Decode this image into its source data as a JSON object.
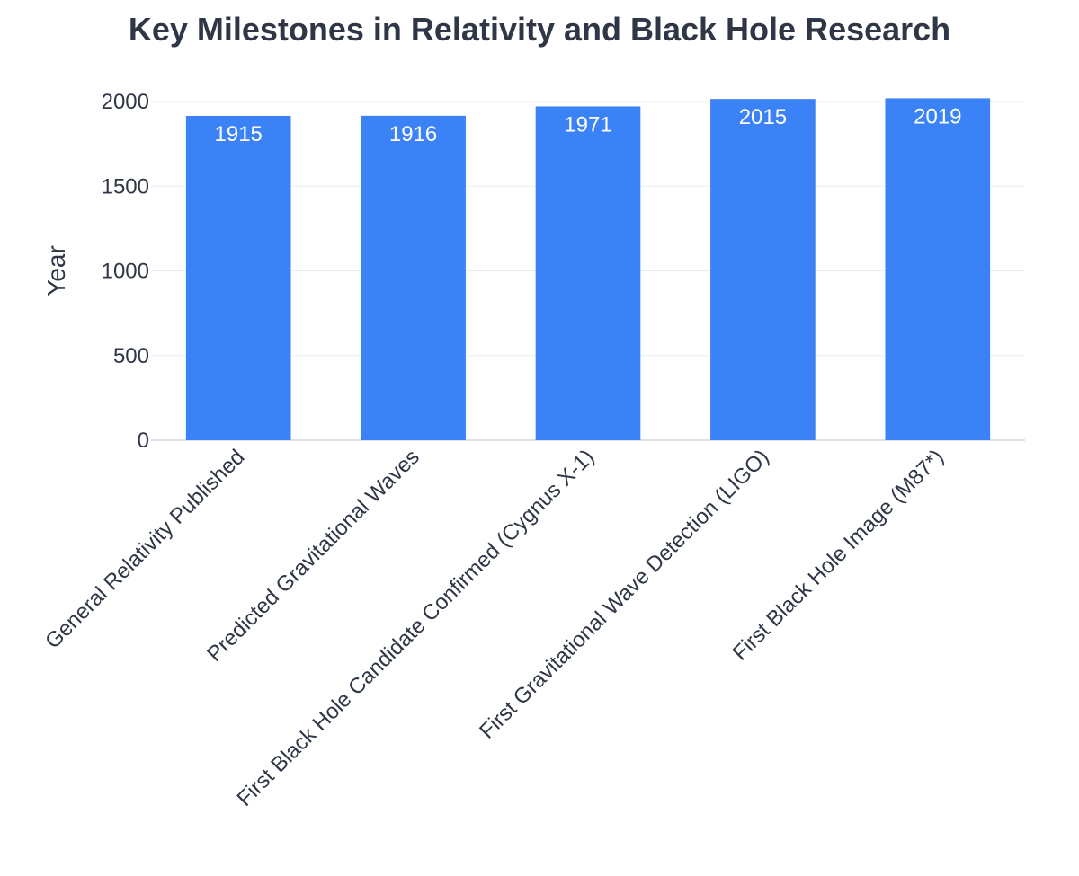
{
  "chart_data": {
    "type": "bar",
    "title": "Key Milestones in Relativity and Black Hole Research",
    "xlabel": "",
    "ylabel": "Year",
    "categories": [
      "General Relativity Published",
      "Predicted Gravitational Waves",
      "First Black Hole Candidate Confirmed (Cygnus X-1)",
      "First Gravitational Wave Detection (LIGO)",
      "First Black Hole Image (M87*)"
    ],
    "values": [
      1915,
      1916,
      1971,
      2015,
      2019
    ],
    "data_labels": [
      "1915",
      "1916",
      "1971",
      "2015",
      "2019"
    ],
    "ylim": [
      0,
      2000
    ],
    "yticks": [
      0,
      500,
      1000,
      1500,
      2000
    ],
    "ytick_labels": [
      "0",
      "500",
      "1000",
      "1500",
      "2000"
    ],
    "grid": true,
    "legend": "none"
  },
  "colors": {
    "bar": "#3b82f6",
    "text": "#2f3747",
    "data_label": "#ffffff",
    "grid": "#e9edf3",
    "baseline": "#d9e0ea",
    "background": "#ffffff"
  }
}
